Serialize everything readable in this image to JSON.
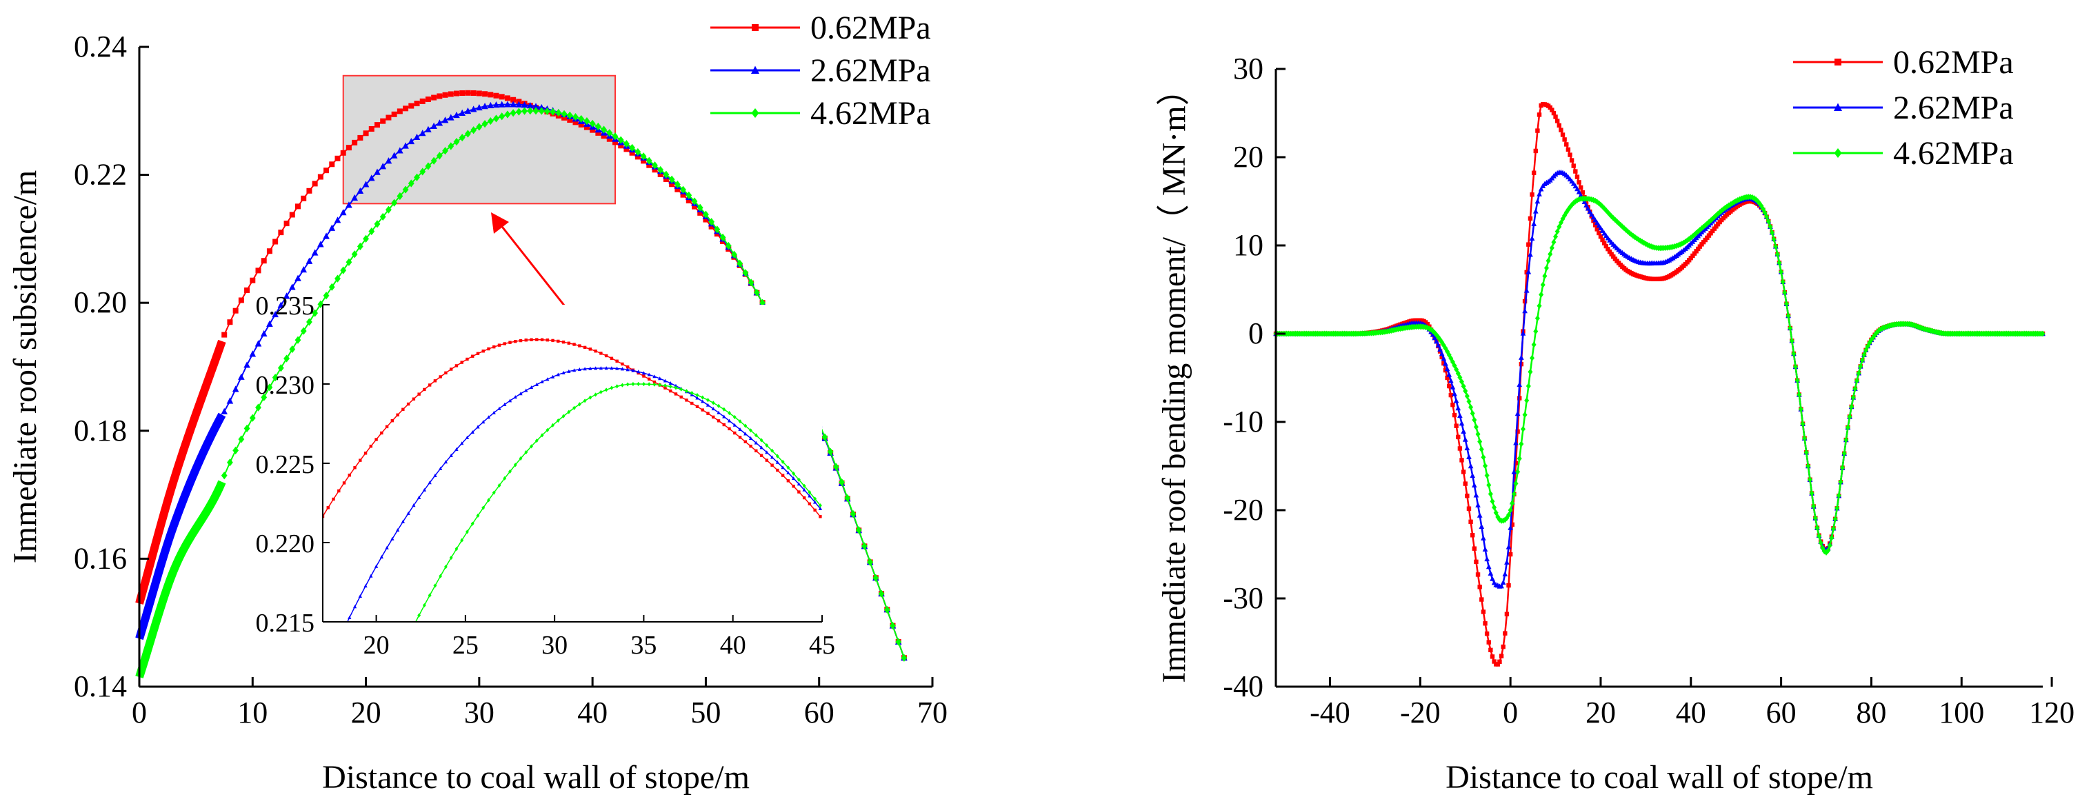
{
  "chart_data": [
    {
      "type": "line",
      "title": "",
      "xlabel": "Distance to coal wall of stope/m",
      "ylabel": "Immediate roof subsidence/m",
      "xlim": [
        0,
        70
      ],
      "ylim": [
        0.14,
        0.24
      ],
      "xticks": [
        "0",
        "10",
        "20",
        "30",
        "40",
        "50",
        "60",
        "70"
      ],
      "yticks": [
        "0.14",
        "0.16",
        "0.18",
        "0.20",
        "0.22",
        "0.24"
      ],
      "legend_position": "top-right",
      "series": [
        {
          "name": "0.62MPa",
          "color": "#ff0000",
          "marker": "square",
          "points": [
            [
              0,
              0.153
            ],
            [
              3,
              0.172
            ],
            [
              7.3,
              0.194
            ],
            [
              7.5,
              0.195
            ],
            [
              10,
              0.2035
            ],
            [
              15,
              0.2175
            ],
            [
              20,
              0.2265
            ],
            [
              25,
              0.2315
            ],
            [
              29,
              0.2328
            ],
            [
              32,
              0.2322
            ],
            [
              35,
              0.2305
            ],
            [
              40,
              0.227
            ],
            [
              45,
              0.2215
            ],
            [
              50,
              0.213
            ],
            [
              55,
              0.2
            ],
            [
              60,
              0.181
            ],
            [
              65,
              0.157
            ],
            [
              67.5,
              0.1445
            ]
          ]
        },
        {
          "name": "2.62MPa",
          "color": "#0000ff",
          "marker": "triangle",
          "points": [
            [
              0,
              0.1475
            ],
            [
              3,
              0.165
            ],
            [
              7.3,
              0.1825
            ],
            [
              7.5,
              0.183
            ],
            [
              10,
              0.192
            ],
            [
              15,
              0.2065
            ],
            [
              20,
              0.2185
            ],
            [
              25,
              0.2265
            ],
            [
              30,
              0.2305
            ],
            [
              33,
              0.231
            ],
            [
              36,
              0.2303
            ],
            [
              40,
              0.2275
            ],
            [
              45,
              0.222
            ],
            [
              50,
              0.2135
            ],
            [
              55,
              0.2
            ],
            [
              60,
              0.181
            ],
            [
              65,
              0.157
            ],
            [
              67.5,
              0.1445
            ]
          ]
        },
        {
          "name": "4.62MPa",
          "color": "#00ff00",
          "marker": "diamond",
          "points": [
            [
              0,
              0.1415
            ],
            [
              3,
              0.158
            ],
            [
              7.3,
              0.172
            ],
            [
              7.5,
              0.173
            ],
            [
              10,
              0.182
            ],
            [
              15,
              0.197
            ],
            [
              20,
              0.21
            ],
            [
              25,
              0.2205
            ],
            [
              30,
              0.2275
            ],
            [
              34.5,
              0.23
            ],
            [
              37,
              0.2297
            ],
            [
              40,
              0.228
            ],
            [
              45,
              0.2222
            ],
            [
              50,
              0.2138
            ],
            [
              55,
              0.2
            ],
            [
              60,
              0.1812
            ],
            [
              65,
              0.157
            ],
            [
              67.5,
              0.1445
            ]
          ]
        }
      ],
      "inset": {
        "xlim": [
          17,
          45
        ],
        "ylim": [
          0.215,
          0.235
        ],
        "xticks": [
          "20",
          "25",
          "30",
          "35",
          "40",
          "45"
        ],
        "yticks": [
          "0.215",
          "0.220",
          "0.225",
          "0.230",
          "0.235"
        ],
        "zoom_region": {
          "x": [
            18,
            42
          ],
          "y": [
            0.2155,
            0.2355
          ]
        }
      }
    },
    {
      "type": "line",
      "title": "",
      "xlabel": "Distance to coal wall of stope/m",
      "ylabel": "Immediate roof bending moment/（ MN·m）",
      "xlim": [
        -52,
        118
      ],
      "ylim": [
        -40,
        30
      ],
      "xticks": [
        "-40",
        "-20",
        "0",
        "20",
        "40",
        "60",
        "80",
        "100",
        "120"
      ],
      "yticks": [
        "-40",
        "-30",
        "-20",
        "-10",
        "0",
        "10",
        "20",
        "30"
      ],
      "legend_position": "top-right",
      "series": [
        {
          "name": "0.62MPa",
          "color": "#ff0000",
          "marker": "square",
          "points": [
            [
              -52,
              0
            ],
            [
              -35,
              0
            ],
            [
              -28,
              0.4
            ],
            [
              -24,
              1.1
            ],
            [
              -21,
              1.5
            ],
            [
              -18,
              0.8
            ],
            [
              -14,
              -5
            ],
            [
              -10,
              -17
            ],
            [
              -7,
              -28
            ],
            [
              -5,
              -34.5
            ],
            [
              -3,
              -37.5
            ],
            [
              -1,
              -33
            ],
            [
              0,
              -25
            ],
            [
              1.5,
              -12
            ],
            [
              3,
              2
            ],
            [
              5,
              17
            ],
            [
              7,
              26
            ],
            [
              9,
              25.5
            ],
            [
              12,
              22
            ],
            [
              16,
              16
            ],
            [
              20,
              11
            ],
            [
              25,
              7.5
            ],
            [
              30,
              6.3
            ],
            [
              33,
              6.2
            ],
            [
              38,
              7.5
            ],
            [
              43,
              10.5
            ],
            [
              48,
              13.5
            ],
            [
              53,
              15
            ],
            [
              57,
              13
            ],
            [
              60,
              7
            ],
            [
              63,
              -3
            ],
            [
              66,
              -15
            ],
            [
              68,
              -22
            ],
            [
              70,
              -24.5
            ],
            [
              72,
              -21
            ],
            [
              75,
              -10
            ],
            [
              78,
              -3
            ],
            [
              81,
              0
            ],
            [
              84,
              0.9
            ],
            [
              88,
              1.1
            ],
            [
              92,
              0.5
            ],
            [
              97,
              0
            ],
            [
              118,
              0
            ]
          ]
        },
        {
          "name": "2.62MPa",
          "color": "#0000ff",
          "marker": "triangle",
          "points": [
            [
              -52,
              0
            ],
            [
              -35,
              0
            ],
            [
              -28,
              0.3
            ],
            [
              -24,
              0.9
            ],
            [
              -21,
              1.2
            ],
            [
              -18,
              0.5
            ],
            [
              -14,
              -4
            ],
            [
              -10,
              -12
            ],
            [
              -7,
              -20
            ],
            [
              -5,
              -26
            ],
            [
              -3,
              -28.5
            ],
            [
              -1.5,
              -28
            ],
            [
              0,
              -22
            ],
            [
              1,
              -14
            ],
            [
              2.5,
              -2
            ],
            [
              4,
              7
            ],
            [
              6,
              15
            ],
            [
              9,
              17.5
            ],
            [
              11,
              18.3
            ],
            [
              14,
              17
            ],
            [
              18,
              13.5
            ],
            [
              23,
              10
            ],
            [
              28,
              8.2
            ],
            [
              33,
              8
            ],
            [
              38,
              9.3
            ],
            [
              43,
              11.8
            ],
            [
              48,
              14.2
            ],
            [
              53,
              15.3
            ],
            [
              57,
              13
            ],
            [
              60,
              7
            ],
            [
              63,
              -3
            ],
            [
              66,
              -15
            ],
            [
              68,
              -22
            ],
            [
              70,
              -24.5
            ],
            [
              72,
              -21
            ],
            [
              75,
              -10
            ],
            [
              78,
              -3
            ],
            [
              81,
              0
            ],
            [
              84,
              0.9
            ],
            [
              88,
              1.1
            ],
            [
              92,
              0.5
            ],
            [
              97,
              0
            ],
            [
              118,
              0
            ]
          ]
        },
        {
          "name": "4.62MPa",
          "color": "#00ff00",
          "marker": "diamond",
          "points": [
            [
              -52,
              0
            ],
            [
              -35,
              0
            ],
            [
              -28,
              0.2
            ],
            [
              -24,
              0.6
            ],
            [
              -20,
              0.8
            ],
            [
              -17,
              0.2
            ],
            [
              -13,
              -3
            ],
            [
              -9,
              -8
            ],
            [
              -6,
              -14
            ],
            [
              -4,
              -19
            ],
            [
              -2,
              -21.2
            ],
            [
              0,
              -20
            ],
            [
              1.5,
              -16
            ],
            [
              3,
              -10
            ],
            [
              5,
              -2
            ],
            [
              7,
              5
            ],
            [
              10,
              11
            ],
            [
              13,
              14.2
            ],
            [
              16,
              15.3
            ],
            [
              19,
              15
            ],
            [
              23,
              13
            ],
            [
              28,
              10.8
            ],
            [
              33,
              9.7
            ],
            [
              38,
              10.2
            ],
            [
              43,
              12.2
            ],
            [
              48,
              14.4
            ],
            [
              53,
              15.5
            ],
            [
              57,
              13
            ],
            [
              60,
              7
            ],
            [
              63,
              -3
            ],
            [
              66,
              -15
            ],
            [
              68,
              -22
            ],
            [
              70,
              -24.8
            ],
            [
              72,
              -21
            ],
            [
              75,
              -10
            ],
            [
              78,
              -3
            ],
            [
              81,
              0
            ],
            [
              84,
              0.9
            ],
            [
              88,
              1.1
            ],
            [
              92,
              0.5
            ],
            [
              97,
              0
            ],
            [
              118,
              0
            ]
          ]
        }
      ]
    }
  ]
}
